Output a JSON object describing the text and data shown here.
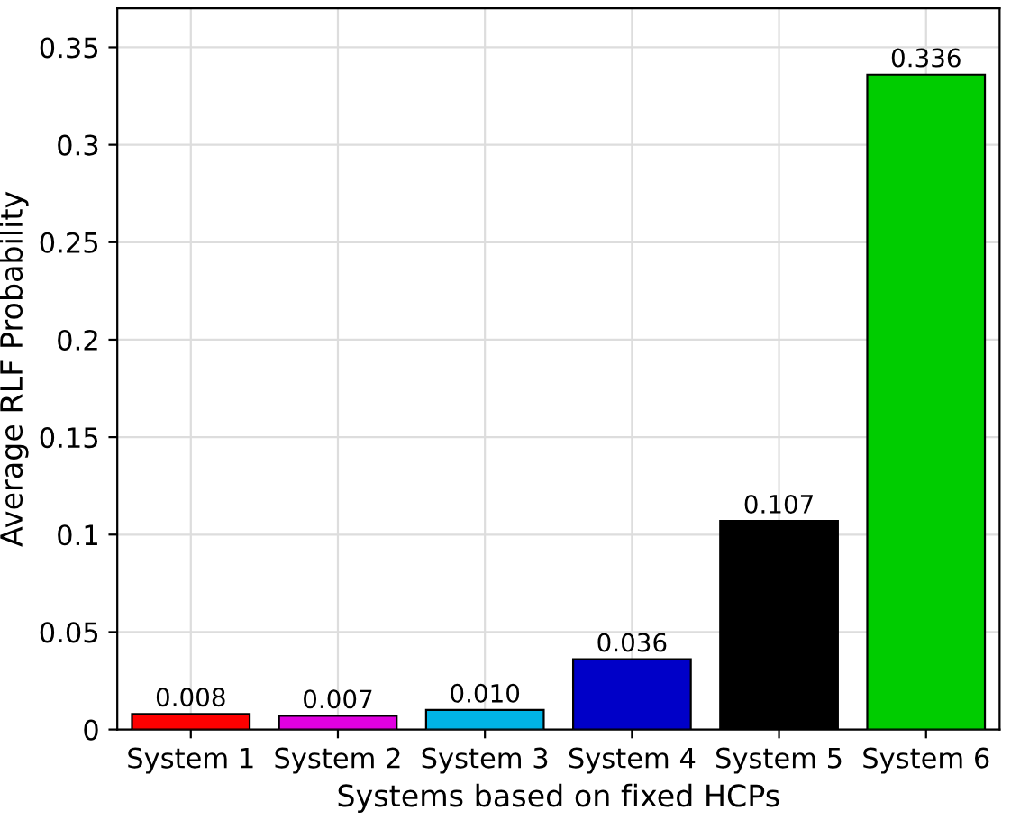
{
  "chart_data": {
    "type": "bar",
    "xlabel": "Systems based on fixed HCPs",
    "ylabel": "Average RLF Probability",
    "categories": [
      "System 1",
      "System 2",
      "System 3",
      "System 4",
      "System 5",
      "System 6"
    ],
    "values": [
      0.008,
      0.007,
      0.01,
      0.036,
      0.107,
      0.336
    ],
    "value_labels": [
      "0.008",
      "0.007",
      "0.010",
      "0.036",
      "0.107",
      "0.336"
    ],
    "colors": [
      "#ff0000",
      "#e000e0",
      "#00b4e6",
      "#0000c8",
      "#000000",
      "#00cc00"
    ],
    "ylim": [
      0,
      0.37
    ],
    "yticks": [
      0,
      0.05,
      0.1,
      0.15,
      0.2,
      0.25,
      0.3,
      0.35
    ],
    "grid": true
  }
}
